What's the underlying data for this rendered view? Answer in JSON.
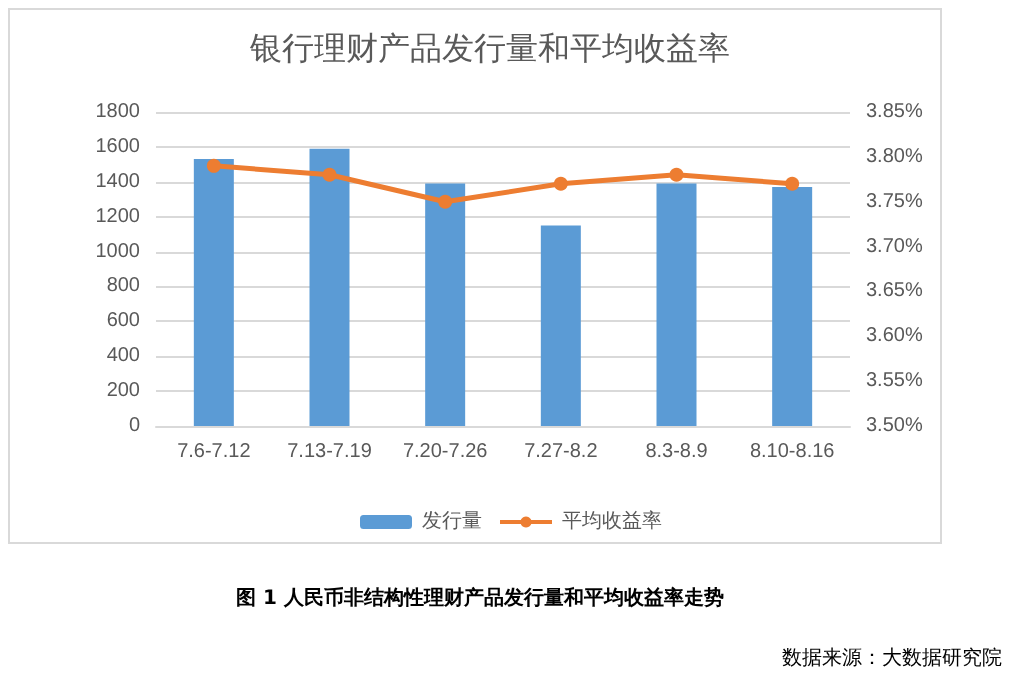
{
  "chart_data": {
    "type": "bar",
    "title": "银行理财产品发行量和平均收益率",
    "categories": [
      "7.6-7.12",
      "7.13-7.19",
      "7.20-7.26",
      "7.27-8.2",
      "8.3-8.9",
      "8.10-8.16"
    ],
    "series": [
      {
        "name": "发行量",
        "color": "#5b9bd5",
        "values": [
          1530,
          1590,
          1390,
          1150,
          1390,
          1370
        ]
      },
      {
        "name": "平均收益率",
        "type": "line",
        "axis": "y2",
        "color": "#ed7d31",
        "values": [
          3.79,
          3.78,
          3.75,
          3.77,
          3.78,
          3.77
        ]
      }
    ],
    "ylim": [
      0,
      1800
    ],
    "yticks": [
      0,
      200,
      400,
      600,
      800,
      1000,
      1200,
      1400,
      1600,
      1800
    ],
    "y2lim": [
      3.5,
      3.85
    ],
    "y2ticks": [
      {
        "value": 3.5,
        "label": "3.50%"
      },
      {
        "value": 3.55,
        "label": "3.55%"
      },
      {
        "value": 3.6,
        "label": "3.60%"
      },
      {
        "value": 3.65,
        "label": "3.65%"
      },
      {
        "value": 3.7,
        "label": "3.70%"
      },
      {
        "value": 3.75,
        "label": "3.75%"
      },
      {
        "value": 3.8,
        "label": "3.80%"
      },
      {
        "value": 3.85,
        "label": "3.85%"
      }
    ],
    "grid": "y",
    "legend": "bottom",
    "marker": "circle",
    "annotations": [
      "图 1 人民币非结构性理财产品发行量和平均收益率走势",
      "数据来源：大数据研究院"
    ]
  }
}
